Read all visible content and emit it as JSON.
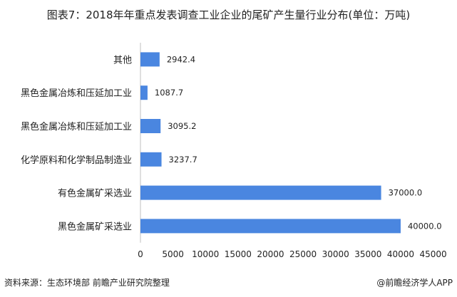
{
  "title": "图表7：2018年年重点发表调查工业企业的尾矿产生量行业分布(单位：万吨)",
  "source": "资料来源：生态环境部 前瞻产业研究院整理",
  "brand": "@前瞻经济学人APP",
  "chart_data": {
    "type": "bar",
    "orientation": "horizontal",
    "categories": [
      "其他",
      "黑色金属冶炼和压延加工业",
      "黑色金属冶炼和压延加工业",
      "化学原料和化学制品制造业",
      "有色金属矿采选业",
      "黑色金属矿采选业"
    ],
    "values": [
      2942.4,
      1087.7,
      3095.2,
      3237.7,
      37000.0,
      40000.0
    ],
    "data_labels": [
      "2942.4",
      "1087.7",
      "3095.2",
      "3237.7",
      "37000.0",
      "40000.0"
    ],
    "xlim": [
      0,
      45000
    ],
    "xticks": [
      "0",
      "5000",
      "10000",
      "15000",
      "20000",
      "25000",
      "30000",
      "35000",
      "40000",
      "45000"
    ],
    "grid": false,
    "bar_color": "#4a86e0"
  }
}
